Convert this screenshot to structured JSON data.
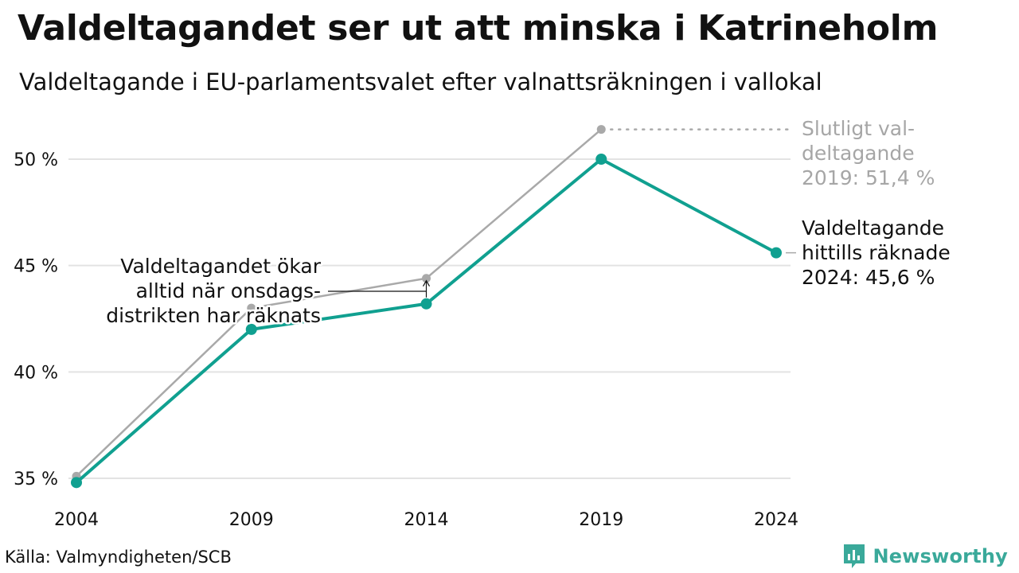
{
  "title": "Valdeltagandet ser ut att minska i Katrineholm",
  "subtitle": "Valdeltagande i EU-parlamentsvalet efter valnattsräkningen i vallokal",
  "source": "Källa: Valmyndigheten/SCB",
  "brand": "Newsworthy",
  "colors": {
    "primary": "#10a090",
    "secondary": "#a9a9a9",
    "grid": "#e3e3e3",
    "text": "#111111",
    "muted": "#a6a6a6",
    "brand": "#3aa99a"
  },
  "chart_data": {
    "type": "line",
    "x": [
      2004,
      2009,
      2014,
      2019,
      2024
    ],
    "xticks": [
      "2004",
      "2009",
      "2014",
      "2019",
      "2024"
    ],
    "yticks": [
      35,
      40,
      45,
      50
    ],
    "ytick_labels": [
      "35 %",
      "40 %",
      "45 %",
      "50 %"
    ],
    "ylim": [
      34.6,
      52.5
    ],
    "grid": true,
    "series": [
      {
        "key": "final",
        "color": "#a9a9a9",
        "values": [
          35.1,
          43.0,
          44.4,
          51.4,
          null
        ]
      },
      {
        "key": "election_night",
        "color": "#10a090",
        "values": [
          34.8,
          42.0,
          43.2,
          50.0,
          45.6
        ]
      }
    ],
    "annotations": {
      "final_2019": [
        "Slutligt val-",
        "deltagande",
        "2019: 51,4 %"
      ],
      "current_2024": [
        "Valdeltagande",
        "hittills räknade",
        "2024: 45,6 %"
      ],
      "note": [
        "Valdeltagandet ökar",
        "alltid när onsdags-",
        "distrikten har räknats"
      ]
    }
  }
}
